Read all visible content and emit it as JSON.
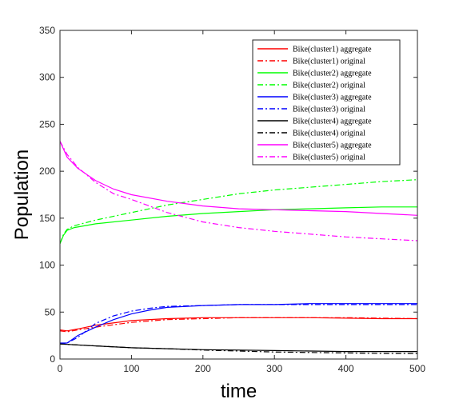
{
  "chart_data": {
    "type": "line",
    "xlabel": "time",
    "ylabel": "Population",
    "xlim": [
      0,
      500
    ],
    "ylim": [
      0,
      350
    ],
    "xticks": [
      0,
      100,
      200,
      300,
      400,
      500
    ],
    "yticks": [
      0,
      50,
      100,
      150,
      200,
      250,
      300,
      350
    ],
    "grid": false,
    "legend_position": "top-right",
    "series": [
      {
        "name": "Bike(cluster1) aggregate",
        "color": "#ff0000",
        "dash": "solid",
        "x": [
          0,
          10,
          25,
          50,
          100,
          150,
          200,
          250,
          300,
          350,
          400,
          450,
          500
        ],
        "y": [
          31,
          30,
          32,
          36,
          41,
          43,
          44,
          44,
          44,
          44,
          43.5,
          43,
          43
        ]
      },
      {
        "name": "Bike(cluster1) original",
        "color": "#ff0000",
        "dash": "dashdot",
        "x": [
          0,
          10,
          25,
          50,
          100,
          150,
          200,
          250,
          300,
          350,
          400,
          450,
          500
        ],
        "y": [
          30,
          29,
          31,
          34,
          39,
          42,
          43,
          44,
          44,
          44,
          44,
          43.5,
          43
        ]
      },
      {
        "name": "Bike(cluster2) aggregate",
        "color": "#00ff00",
        "dash": "solid",
        "x": [
          0,
          5,
          10,
          20,
          50,
          100,
          150,
          200,
          250,
          300,
          350,
          400,
          450,
          500
        ],
        "y": [
          123,
          132,
          137,
          140,
          144,
          148,
          152,
          155,
          157,
          159,
          160,
          161,
          162,
          162
        ]
      },
      {
        "name": "Bike(cluster2) original",
        "color": "#00ff00",
        "dash": "dashdot",
        "x": [
          0,
          5,
          10,
          20,
          50,
          100,
          150,
          200,
          250,
          300,
          350,
          400,
          450,
          500
        ],
        "y": [
          123,
          133,
          138,
          142,
          148,
          156,
          164,
          170,
          176,
          180,
          183,
          186,
          189,
          191
        ]
      },
      {
        "name": "Bike(cluster3) aggregate",
        "color": "#0000ff",
        "dash": "solid",
        "x": [
          0,
          10,
          25,
          50,
          75,
          100,
          125,
          150,
          200,
          250,
          300,
          350,
          400,
          450,
          500
        ],
        "y": [
          17,
          17,
          25,
          34,
          42,
          48,
          52,
          55,
          57,
          58,
          58,
          59,
          59,
          59,
          59
        ]
      },
      {
        "name": "Bike(cluster3) original",
        "color": "#0000ff",
        "dash": "dashdot",
        "x": [
          0,
          10,
          25,
          50,
          75,
          100,
          125,
          150,
          200,
          250,
          300,
          350,
          400,
          450,
          500
        ],
        "y": [
          16,
          17,
          23,
          38,
          46,
          51,
          54,
          56,
          57,
          58,
          58,
          58,
          58,
          58,
          58
        ]
      },
      {
        "name": "Bike(cluster4) aggregate",
        "color": "#000000",
        "dash": "solid",
        "x": [
          0,
          50,
          100,
          150,
          200,
          250,
          300,
          350,
          400,
          450,
          500
        ],
        "y": [
          16,
          14,
          12,
          11,
          10,
          9.5,
          9,
          8.5,
          8,
          8,
          8
        ]
      },
      {
        "name": "Bike(cluster4) original",
        "color": "#000000",
        "dash": "dashdot",
        "x": [
          0,
          50,
          100,
          150,
          200,
          250,
          300,
          350,
          400,
          450,
          500
        ],
        "y": [
          16,
          14,
          12,
          11,
          9.5,
          8.5,
          7.5,
          7,
          6.5,
          6,
          6
        ]
      },
      {
        "name": "Bike(cluster5) aggregate",
        "color": "#ff00ff",
        "dash": "solid",
        "x": [
          0,
          10,
          25,
          50,
          75,
          100,
          150,
          200,
          250,
          300,
          350,
          400,
          450,
          500
        ],
        "y": [
          232,
          215,
          203,
          190,
          181,
          175,
          168,
          163,
          160,
          159,
          158,
          157,
          155,
          153
        ]
      },
      {
        "name": "Bike(cluster5) original",
        "color": "#ff00ff",
        "dash": "dashdot",
        "x": [
          0,
          10,
          25,
          50,
          75,
          100,
          150,
          200,
          250,
          300,
          350,
          400,
          450,
          500
        ],
        "y": [
          232,
          218,
          204,
          188,
          176,
          170,
          156,
          146,
          140,
          136,
          133,
          130,
          128,
          126
        ]
      }
    ]
  }
}
